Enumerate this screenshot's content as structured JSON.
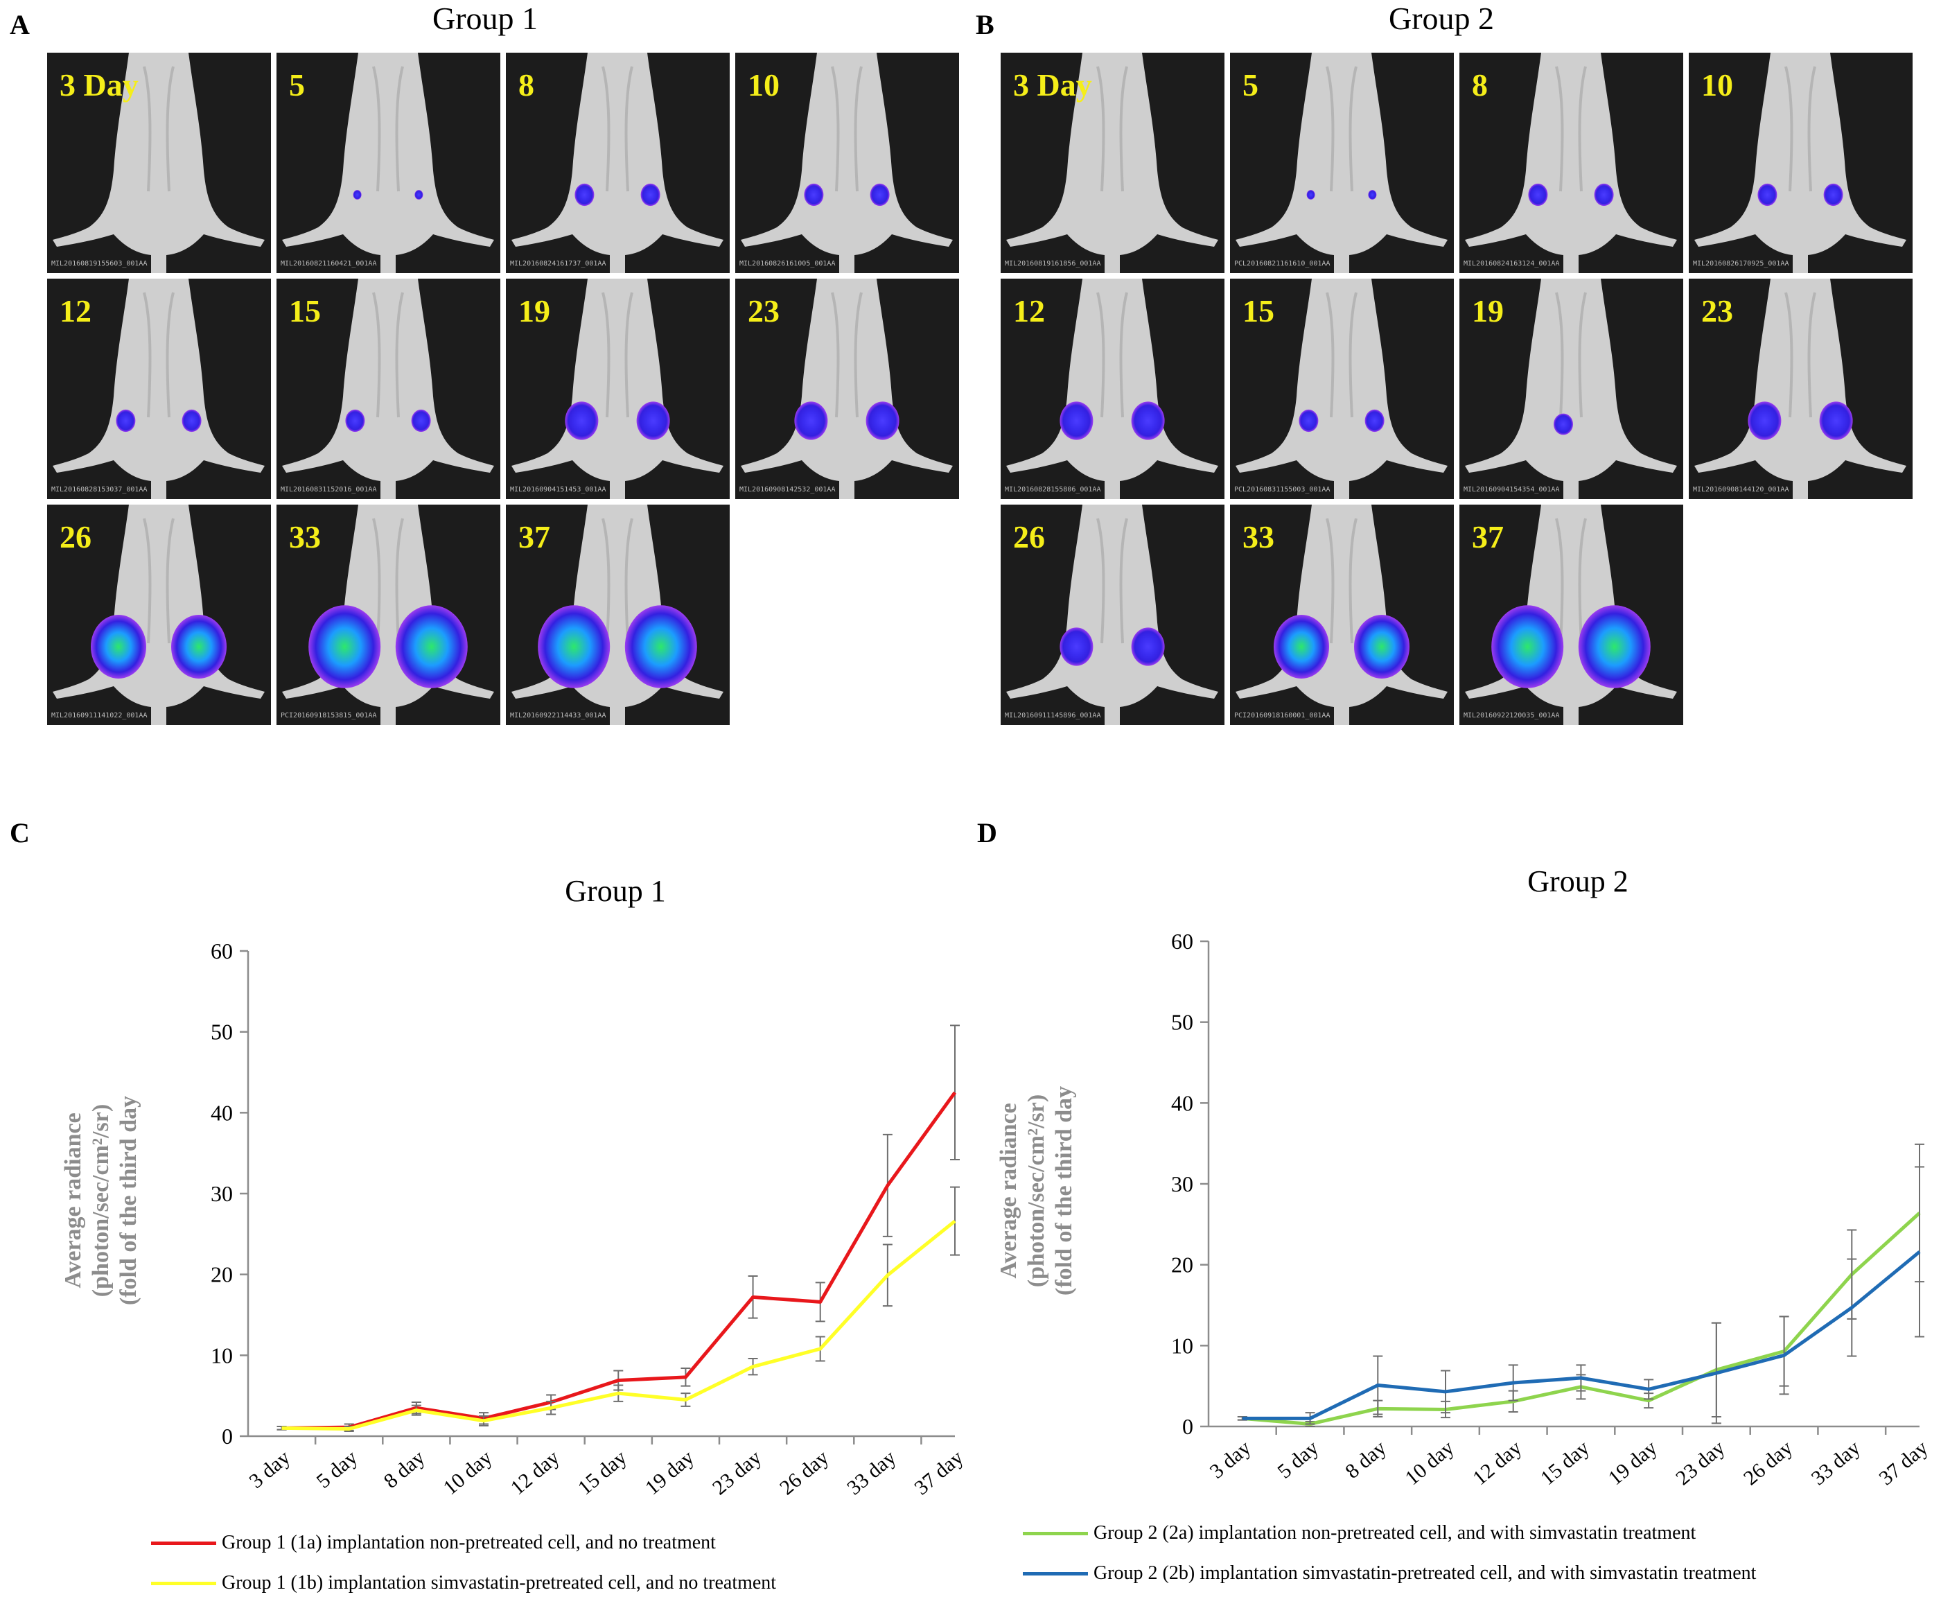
{
  "panels": {
    "a_letter": "A",
    "b_letter": "B",
    "c_letter": "C",
    "d_letter": "D",
    "a_title": "Group 1",
    "b_title": "Group 2"
  },
  "group1_images": [
    {
      "day": "3 Day",
      "file": "MIL20160819155603_001AA",
      "spots": "none"
    },
    {
      "day": "5",
      "file": "MIL20160821160421_001AA",
      "spots": "tiny"
    },
    {
      "day": "8",
      "file": "MIL20160824161737_001AA",
      "spots": "small"
    },
    {
      "day": "10",
      "file": "MIL20160826161005_001AA",
      "spots": "small"
    },
    {
      "day": "12",
      "file": "MIL20160828153037_001AA",
      "spots": "small"
    },
    {
      "day": "15",
      "file": "MIL20160831152016_001AA",
      "spots": "small"
    },
    {
      "day": "19",
      "file": "MIL20160904151453_001AA",
      "spots": "medium"
    },
    {
      "day": "23",
      "file": "MIL20160908142532_001AA",
      "spots": "medium"
    },
    {
      "day": "26",
      "file": "MIL20160911141022_001AA",
      "spots": "large"
    },
    {
      "day": "33",
      "file": "PCI20160918153815_001AA",
      "spots": "xlarge"
    },
    {
      "day": "37",
      "file": "MIL20160922114433_001AA",
      "spots": "xlarge"
    }
  ],
  "group2_images": [
    {
      "day": "3 Day",
      "file": "MIL20160819161856_001AA",
      "spots": "none"
    },
    {
      "day": "5",
      "file": "PCL20160821161610_001AA",
      "spots": "tiny"
    },
    {
      "day": "8",
      "file": "MIL20160824163124_001AA",
      "spots": "small"
    },
    {
      "day": "10",
      "file": "MIL20160826170925_001AA",
      "spots": "small"
    },
    {
      "day": "12",
      "file": "MIL20160828155806_001AA",
      "spots": "medium"
    },
    {
      "day": "15",
      "file": "PCL20160831155003_001AA",
      "spots": "small"
    },
    {
      "day": "19",
      "file": "MIL20160904154354_001AA",
      "spots": "single"
    },
    {
      "day": "23",
      "file": "MIL20160908144120_001AA",
      "spots": "medium"
    },
    {
      "day": "26",
      "file": "MIL20160911145896_001AA",
      "spots": "medium"
    },
    {
      "day": "33",
      "file": "PCI20160918160001_001AA",
      "spots": "large"
    },
    {
      "day": "37",
      "file": "MIL20160922120035_001AA",
      "spots": "xlarge"
    }
  ],
  "colors": {
    "red": "#e8171b",
    "yellow": "#ffff27",
    "green": "#8ed44d",
    "blue": "#1f6bb4",
    "axis": "#8c8c8c",
    "axis_label": "#8c8c8c",
    "tick_text": "#000000"
  },
  "chart_data": [
    {
      "type": "line",
      "title": "Group 1",
      "ylabel_lines": [
        "Average radiance",
        "(photon/sec/cm²/sr)",
        "(fold of the third day"
      ],
      "categories": [
        "3 day",
        "5 day",
        "8 day",
        "10 day",
        "12 day",
        "15 day",
        "19 day",
        "23 day",
        "26 day",
        "33 day",
        "37 day"
      ],
      "ylim": [
        0,
        60
      ],
      "yticks": [
        "0",
        "10",
        "20",
        "30",
        "40",
        "50",
        "60"
      ],
      "series": [
        {
          "name": "Group 1 (1a) implantation non-pretreated cell, and no treatment",
          "color": "#e8171b",
          "values": [
            1.0,
            1.1,
            3.5,
            2.2,
            4.2,
            6.9,
            7.3,
            17.2,
            16.6,
            31.0,
            42.5
          ],
          "errors": [
            0.2,
            0.4,
            0.7,
            0.7,
            0.9,
            1.2,
            1.1,
            2.6,
            2.4,
            6.3,
            8.3
          ]
        },
        {
          "name": "Group 1 (1b) implantation simvastatin-pretreated cell, and no treatment",
          "color": "#ffff27",
          "values": [
            1.0,
            0.9,
            3.2,
            1.9,
            3.5,
            5.3,
            4.5,
            8.6,
            10.8,
            19.9,
            26.6
          ],
          "errors": [
            0.2,
            0.3,
            0.6,
            0.6,
            0.8,
            1.0,
            0.8,
            1.0,
            1.5,
            3.8,
            4.2
          ]
        }
      ]
    },
    {
      "type": "line",
      "title": "Group 2",
      "ylabel_lines": [
        "Average radiance",
        "(photon/sec/cm²/sr)",
        "(fold of the third day"
      ],
      "categories": [
        "3 day",
        "5 day",
        "8 day",
        "10 day",
        "12 day",
        "15 day",
        "19 day",
        "23 day",
        "26 day",
        "33 day",
        "37 day"
      ],
      "ylim": [
        0,
        60
      ],
      "yticks": [
        "0",
        "10",
        "20",
        "30",
        "40",
        "50",
        "60"
      ],
      "series": [
        {
          "name": "Group 2 (2a) implantation non-pretreated cell, and with simvastatin treatment",
          "color": "#8ed44d",
          "values": [
            1.0,
            0.3,
            2.2,
            2.1,
            3.1,
            4.9,
            3.2,
            7.0,
            9.3,
            18.8,
            26.4
          ],
          "errors": [
            0.2,
            0.3,
            1.0,
            1.0,
            1.3,
            1.5,
            0.9,
            5.8,
            4.3,
            5.5,
            8.5
          ]
        },
        {
          "name": "Group 2 (2b) implantation simvastatin-pretreated cell, and with simvastatin treatment",
          "color": "#1f6bb4",
          "values": [
            1.0,
            1.0,
            5.1,
            4.3,
            5.4,
            6.0,
            4.6,
            6.6,
            8.8,
            14.7,
            21.6
          ],
          "errors": [
            0.2,
            0.7,
            3.6,
            2.6,
            2.2,
            1.6,
            1.2,
            6.2,
            4.8,
            6.0,
            10.5
          ]
        }
      ]
    }
  ]
}
